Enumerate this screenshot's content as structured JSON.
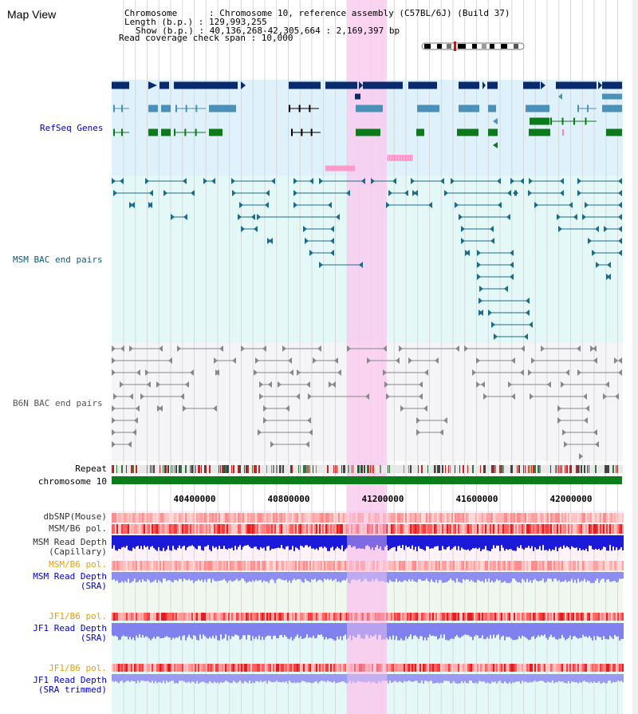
{
  "header": {
    "title": "Map View",
    "info_lines": [
      "Chromosome      : Chromosome 10, reference assembly (C57BL/6J) (Build 37)",
      "Length (b.p.) : 129,993,255",
      "Show (b.p.) : 40,136,268-42,305,664 : 2,169,397 bp",
      "Read coverage check span : 10,000"
    ]
  },
  "tracks": {
    "refseq": "RefSeq Genes",
    "msm_bac": "MSM BAC end pairs",
    "b6n_bac": "B6N BAC end pairs",
    "repeat": "Repeat",
    "chromosome": "chromosome 10"
  },
  "ruler": {
    "ticks": [
      "40400000",
      "40800000",
      "41200000",
      "41600000",
      "42000000"
    ]
  },
  "data_tracks": [
    {
      "lines": [
        "dbSNP(Mouse)"
      ],
      "color": "#333333"
    },
    {
      "lines": [
        "MSM/B6 pol."
      ],
      "color": "#333333"
    },
    {
      "lines": [
        "MSM Read Depth",
        "(Capillary)"
      ],
      "color": "#333333"
    },
    {
      "lines": [
        "MSM/B6 pol."
      ],
      "color": "#e8a000"
    },
    {
      "lines": [
        "MSM Read Depth",
        "(SRA)"
      ],
      "color": "#0000cc"
    },
    {
      "lines": [
        "JF1/B6 pol."
      ],
      "color": "#e8a000"
    },
    {
      "lines": [
        "JF1 Read Depth",
        "(SRA)"
      ],
      "color": "#0000cc"
    },
    {
      "lines": [
        "JF1/B6 pol."
      ],
      "color": "#e8a000"
    },
    {
      "lines": [
        "JF1 Read Depth",
        "(SRA trimmed)"
      ],
      "color": "#0000cc"
    }
  ],
  "colors": {
    "refseq_bg": "#dff1fb",
    "msm_bg": "#e4f8f8",
    "b6n_bg": "#f5f5f8",
    "highlight": "#f9cdef",
    "gene_dark": "#0a2a6e",
    "gene_mid": "#4a90b8",
    "gene_green": "#0c7a1a",
    "msm_line": "#1b6c8a",
    "b6n_line": "#888888",
    "chrom_green": "#0b7d1a"
  }
}
